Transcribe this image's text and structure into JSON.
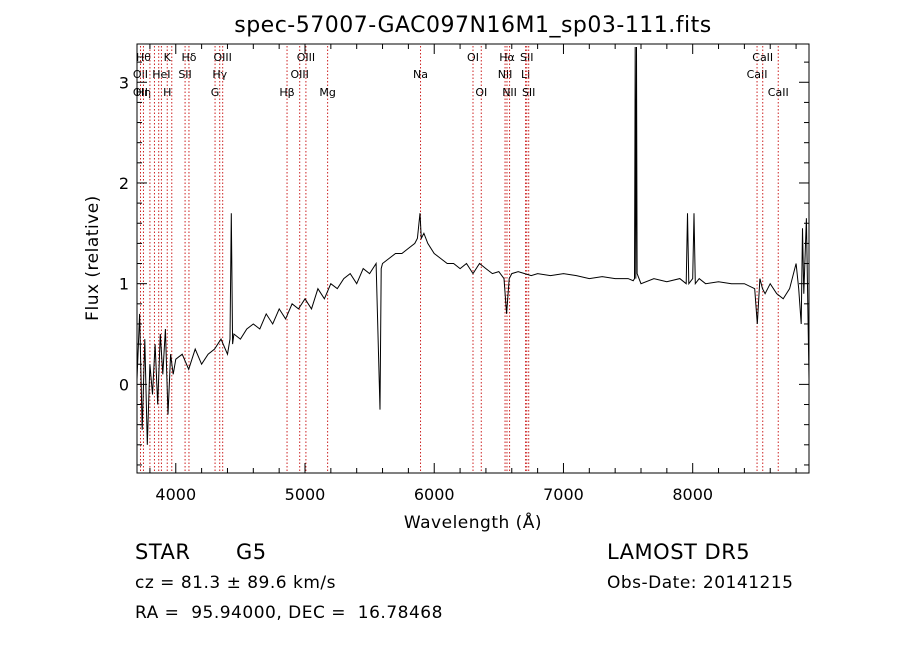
{
  "chart_data": {
    "type": "line",
    "title": "spec-57007-GAC097N16M1_sp03-111.fits",
    "xlabel": "Wavelength (Å)",
    "ylabel": "Flux (relative)",
    "xlim": [
      3700,
      8900
    ],
    "ylim": [
      -0.88,
      3.38
    ],
    "xticks": [
      4000,
      5000,
      6000,
      7000,
      8000
    ],
    "xtick_labels": [
      "4000",
      "5000",
      "6000",
      "7000",
      "8000"
    ],
    "yticks": [
      0,
      1,
      2,
      3
    ],
    "ytick_labels": [
      "0",
      "1",
      "2",
      "3"
    ],
    "series": [
      {
        "x": [
          3700,
          3720,
          3740,
          3760,
          3780,
          3800,
          3820,
          3840,
          3860,
          3880,
          3900,
          3920,
          3940,
          3960,
          3980,
          4000,
          4050,
          4100,
          4150,
          4200,
          4250,
          4300,
          4350,
          4400,
          4420,
          4430,
          4440,
          4450,
          4500,
          4550,
          4600,
          4650,
          4700,
          4750,
          4800,
          4850,
          4900,
          4950,
          5000,
          5050,
          5100,
          5150,
          5200,
          5250,
          5300,
          5350,
          5400,
          5450,
          5500,
          5550,
          5580,
          5590,
          5600,
          5650,
          5700,
          5750,
          5800,
          5850,
          5870,
          5890,
          5900,
          5920,
          5950,
          6000,
          6050,
          6100,
          6150,
          6200,
          6250,
          6300,
          6350,
          6400,
          6450,
          6500,
          6540,
          6560,
          6580,
          6600,
          6650,
          6700,
          6750,
          6800,
          6900,
          7000,
          7100,
          7200,
          7300,
          7400,
          7500,
          7540,
          7550,
          7555,
          7560,
          7565,
          7570,
          7600,
          7700,
          7800,
          7900,
          7950,
          7960,
          7970,
          8000,
          8010,
          8020,
          8050,
          8100,
          8200,
          8300,
          8400,
          8480,
          8500,
          8520,
          8540,
          8560,
          8600,
          8650,
          8700,
          8750,
          8800,
          8820,
          8840,
          8850,
          8860,
          8880,
          8900
        ],
        "y": [
          0.05,
          0.7,
          -0.45,
          0.45,
          -0.6,
          0.2,
          -0.1,
          0.4,
          -0.2,
          0.5,
          0.1,
          0.55,
          -0.3,
          0.3,
          0.1,
          0.25,
          0.3,
          0.15,
          0.35,
          0.2,
          0.3,
          0.35,
          0.45,
          0.3,
          0.45,
          1.7,
          0.4,
          0.5,
          0.45,
          0.55,
          0.6,
          0.55,
          0.7,
          0.6,
          0.75,
          0.65,
          0.8,
          0.75,
          0.85,
          0.75,
          0.95,
          0.85,
          1.0,
          0.95,
          1.05,
          1.1,
          1.0,
          1.15,
          1.1,
          1.2,
          -0.25,
          1.15,
          1.2,
          1.25,
          1.3,
          1.3,
          1.35,
          1.4,
          1.45,
          1.7,
          1.45,
          1.5,
          1.4,
          1.3,
          1.25,
          1.2,
          1.2,
          1.15,
          1.2,
          1.1,
          1.2,
          1.15,
          1.1,
          1.12,
          1.05,
          0.7,
          1.05,
          1.1,
          1.12,
          1.1,
          1.08,
          1.1,
          1.08,
          1.1,
          1.08,
          1.05,
          1.07,
          1.05,
          1.05,
          1.03,
          1.05,
          3.35,
          1.05,
          3.35,
          1.1,
          1.0,
          1.05,
          1.02,
          1.05,
          1.0,
          1.7,
          1.0,
          1.05,
          1.7,
          1.0,
          1.05,
          1.0,
          1.02,
          1.0,
          1.0,
          0.95,
          0.6,
          1.05,
          0.95,
          0.9,
          1.0,
          0.9,
          0.85,
          0.95,
          1.2,
          0.95,
          0.6,
          1.55,
          0.9,
          1.65,
          0.05
        ],
        "color": "#000000"
      }
    ],
    "lines": [
      {
        "x": 3727,
        "row1": "",
        "row2": "OII",
        "row3": "OII"
      },
      {
        "x": 3750,
        "row1": "Hθ",
        "row2": "",
        "row3": "Hη"
      },
      {
        "x": 3800,
        "row1": "",
        "row2": "",
        "row3": ""
      },
      {
        "x": 3835,
        "row1": "",
        "row2": "",
        "row3": ""
      },
      {
        "x": 3868,
        "row1": "",
        "row2": "",
        "row3": ""
      },
      {
        "x": 3889,
        "row1": "",
        "row2": "HeI",
        "row3": ""
      },
      {
        "x": 3934,
        "row1": "K",
        "row2": "",
        "row3": "H"
      },
      {
        "x": 3969,
        "row1": "",
        "row2": "",
        "row3": ""
      },
      {
        "x": 4072,
        "row1": "",
        "row2": "SII",
        "row3": ""
      },
      {
        "x": 4102,
        "row1": "Hδ",
        "row2": "",
        "row3": ""
      },
      {
        "x": 4304,
        "row1": "",
        "row2": "",
        "row3": "G"
      },
      {
        "x": 4340,
        "row1": "",
        "row2": "Hγ",
        "row3": ""
      },
      {
        "x": 4363,
        "row1": "OIII",
        "row2": "",
        "row3": ""
      },
      {
        "x": 4861,
        "row1": "",
        "row2": "",
        "row3": "Hβ"
      },
      {
        "x": 4959,
        "row1": "",
        "row2": "OIII",
        "row3": ""
      },
      {
        "x": 5007,
        "row1": "OIII",
        "row2": "",
        "row3": ""
      },
      {
        "x": 5175,
        "row1": "",
        "row2": "",
        "row3": "Mg"
      },
      {
        "x": 5894,
        "row1": "",
        "row2": "Na",
        "row3": ""
      },
      {
        "x": 6300,
        "row1": "OI",
        "row2": "",
        "row3": ""
      },
      {
        "x": 6364,
        "row1": "",
        "row2": "",
        "row3": "OI"
      },
      {
        "x": 6548,
        "row1": "",
        "row2": "NII",
        "row3": ""
      },
      {
        "x": 6563,
        "row1": "Hα",
        "row2": "",
        "row3": ""
      },
      {
        "x": 6583,
        "row1": "",
        "row2": "",
        "row3": "NII"
      },
      {
        "x": 6707,
        "row1": "",
        "row2": "Li",
        "row3": ""
      },
      {
        "x": 6716,
        "row1": "SII",
        "row2": "",
        "row3": ""
      },
      {
        "x": 6731,
        "row1": "",
        "row2": "",
        "row3": "SII"
      },
      {
        "x": 8498,
        "row1": "",
        "row2": "CaII",
        "row3": ""
      },
      {
        "x": 8542,
        "row1": "CaII",
        "row2": "",
        "row3": ""
      },
      {
        "x": 8662,
        "row1": "",
        "row2": "",
        "row3": "CaII"
      }
    ],
    "line_color": "#cc2222",
    "grid": false
  },
  "footer": {
    "object_class": "STAR",
    "subclass": "G5",
    "survey": "LAMOST DR5",
    "cz": "cz = 81.3 ± 89.6 km/s",
    "obs_date": "Obs-Date: 20141215",
    "coords": "RA =  95.94000, DEC =  16.78468"
  }
}
